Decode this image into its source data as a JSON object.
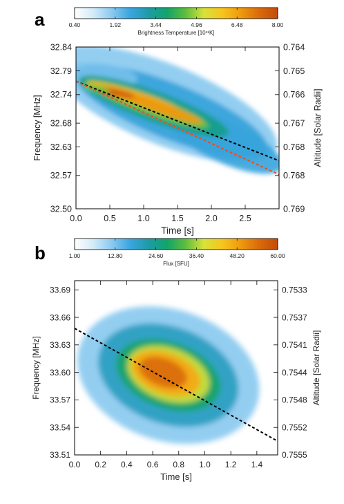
{
  "colormap": [
    "#ffffff",
    "#d4ebf7",
    "#8ccaf0",
    "#3aa5e0",
    "#1d9ba6",
    "#12a46a",
    "#5cbd3e",
    "#d8e23a",
    "#f7c51d",
    "#ee9a0e",
    "#da6a0a",
    "#c24c0a"
  ],
  "trend_colors": {
    "black": "#000000",
    "red": "#e0502a"
  },
  "chart_data": [
    {
      "panel": "a",
      "type": "heatmap",
      "colorbar": {
        "label": "Brightness Temperature [10¹¹K]",
        "ticks": [
          "0.40",
          "1.92",
          "3.44",
          "4.96",
          "6.48",
          "8.00"
        ],
        "range": [
          0.4,
          8.0
        ]
      },
      "xlabel": "Time [s]",
      "ylabel": "Frequency [MHz]",
      "y2label": "Altitude [Solar Radii]",
      "xlim": [
        0,
        3
      ],
      "ylim": [
        32.5,
        32.84
      ],
      "xticks": [
        "0.0",
        "0.5",
        "1.0",
        "1.5",
        "2.0",
        "2.5"
      ],
      "yticks": [
        "32.50",
        "32.57",
        "32.63",
        "32.68",
        "32.74",
        "32.79",
        "32.84"
      ],
      "y2ticks": [
        "0.769",
        "0.768",
        "0.768",
        "0.767",
        "0.766",
        "0.765",
        "0.764"
      ],
      "drift_lines": [
        {
          "style": "black dashed",
          "x": [
            0,
            3
          ],
          "y": [
            32.768,
            32.601
          ]
        },
        {
          "style": "red dashed",
          "x": [
            0,
            3
          ],
          "y": [
            32.768,
            32.572
          ]
        }
      ]
    },
    {
      "panel": "b",
      "type": "heatmap",
      "colorbar": {
        "label": "Flux [SFU]",
        "ticks": [
          "1.00",
          "12.80",
          "24.60",
          "36.40",
          "48.20",
          "60.00"
        ],
        "range": [
          1.0,
          60.0
        ]
      },
      "xlabel": "Time [s]",
      "ylabel": "Frequency [MHz]",
      "y2label": "Altitude [Solar Radii]",
      "xlim": [
        0,
        1.56
      ],
      "ylim": [
        33.51,
        33.7
      ],
      "xticks": [
        "0.0",
        "0.2",
        "0.4",
        "0.6",
        "0.8",
        "1.0",
        "1.2",
        "1.4"
      ],
      "yticks": [
        "33.51",
        "33.54",
        "33.57",
        "33.60",
        "33.63",
        "33.66",
        "33.69"
      ],
      "y2ticks": [
        "0.7555",
        "0.7552",
        "0.7548",
        "0.7544",
        "0.7541",
        "0.7537",
        "0.7533"
      ],
      "drift_lines": [
        {
          "style": "black dashed",
          "x": [
            0,
            1.56
          ],
          "y": [
            33.648,
            33.525
          ]
        }
      ]
    }
  ]
}
